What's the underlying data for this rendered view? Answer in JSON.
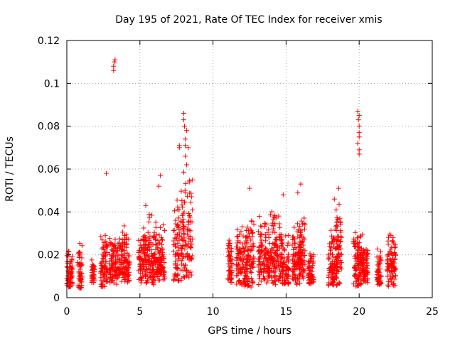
{
  "chart_data": {
    "type": "scatter",
    "title": "Day 195 of 2021, Rate Of TEC Index for receiver xmis",
    "xlabel": "GPS time / hours",
    "ylabel": "ROTI / TECUs",
    "xlim": [
      0,
      25
    ],
    "ylim": [
      0,
      0.12
    ],
    "xticks": [
      "0",
      "5",
      "10",
      "15",
      "20",
      "25"
    ],
    "yticks": [
      "0",
      "0.02",
      "0.04",
      "0.06",
      "0.08",
      "0.1",
      "0.12"
    ],
    "grid": true,
    "marker": "+",
    "color": "#ff0000",
    "clusters": [
      {
        "x": [
          0.0,
          0.4
        ],
        "y": [
          0.005,
          0.024
        ]
      },
      {
        "x": [
          0.75,
          1.05
        ],
        "y": [
          0.004,
          0.027
        ]
      },
      {
        "x": [
          1.7,
          1.9
        ],
        "y": [
          0.007,
          0.019
        ]
      },
      {
        "x": [
          2.3,
          2.8
        ],
        "y": [
          0.005,
          0.031
        ]
      },
      {
        "x": [
          2.9,
          3.6
        ],
        "y": [
          0.006,
          0.032
        ]
      },
      {
        "x": [
          3.6,
          4.3
        ],
        "y": [
          0.007,
          0.036
        ]
      },
      {
        "x": [
          4.9,
          5.5
        ],
        "y": [
          0.006,
          0.036
        ]
      },
      {
        "x": [
          5.5,
          6.1
        ],
        "y": [
          0.006,
          0.042
        ]
      },
      {
        "x": [
          6.1,
          6.7
        ],
        "y": [
          0.008,
          0.036
        ]
      },
      {
        "x": [
          7.3,
          7.7
        ],
        "y": [
          0.007,
          0.048
        ]
      },
      {
        "x": [
          7.8,
          8.6
        ],
        "y": [
          0.008,
          0.064
        ]
      },
      {
        "x": [
          11.0,
          11.3
        ],
        "y": [
          0.007,
          0.031
        ]
      },
      {
        "x": [
          11.6,
          12.3
        ],
        "y": [
          0.005,
          0.035
        ]
      },
      {
        "x": [
          12.3,
          12.8
        ],
        "y": [
          0.004,
          0.044
        ]
      },
      {
        "x": [
          13.1,
          13.8
        ],
        "y": [
          0.006,
          0.04
        ]
      },
      {
        "x": [
          13.8,
          14.6
        ],
        "y": [
          0.006,
          0.041
        ]
      },
      {
        "x": [
          14.6,
          15.2
        ],
        "y": [
          0.006,
          0.034
        ]
      },
      {
        "x": [
          15.4,
          16.0
        ],
        "y": [
          0.006,
          0.036
        ]
      },
      {
        "x": [
          15.9,
          16.3
        ],
        "y": [
          0.009,
          0.044
        ]
      },
      {
        "x": [
          16.5,
          16.9
        ],
        "y": [
          0.006,
          0.022
        ]
      },
      {
        "x": [
          17.9,
          18.5
        ],
        "y": [
          0.005,
          0.034
        ]
      },
      {
        "x": [
          18.4,
          18.8
        ],
        "y": [
          0.006,
          0.05
        ]
      },
      {
        "x": [
          19.6,
          20.3
        ],
        "y": [
          0.005,
          0.033
        ]
      },
      {
        "x": [
          20.2,
          20.6
        ],
        "y": [
          0.007,
          0.024
        ]
      },
      {
        "x": [
          21.2,
          21.5
        ],
        "y": [
          0.006,
          0.024
        ]
      },
      {
        "x": [
          21.9,
          22.5
        ],
        "y": [
          0.005,
          0.032
        ]
      }
    ],
    "outliers": [
      {
        "x": 3.2,
        "y": 0.106
      },
      {
        "x": 3.2,
        "y": 0.108
      },
      {
        "x": 3.25,
        "y": 0.11
      },
      {
        "x": 3.3,
        "y": 0.111
      },
      {
        "x": 2.7,
        "y": 0.058
      },
      {
        "x": 6.3,
        "y": 0.052
      },
      {
        "x": 6.4,
        "y": 0.057
      },
      {
        "x": 5.4,
        "y": 0.043
      },
      {
        "x": 7.7,
        "y": 0.07
      },
      {
        "x": 7.7,
        "y": 0.071
      },
      {
        "x": 8.0,
        "y": 0.086
      },
      {
        "x": 8.0,
        "y": 0.083
      },
      {
        "x": 8.05,
        "y": 0.08
      },
      {
        "x": 8.1,
        "y": 0.074
      },
      {
        "x": 8.1,
        "y": 0.071
      },
      {
        "x": 8.2,
        "y": 0.078
      },
      {
        "x": 8.1,
        "y": 0.066
      },
      {
        "x": 8.2,
        "y": 0.062
      },
      {
        "x": 8.3,
        "y": 0.07
      },
      {
        "x": 12.5,
        "y": 0.051
      },
      {
        "x": 16.0,
        "y": 0.053
      },
      {
        "x": 15.8,
        "y": 0.049
      },
      {
        "x": 14.8,
        "y": 0.048
      },
      {
        "x": 18.3,
        "y": 0.046
      },
      {
        "x": 18.6,
        "y": 0.051
      },
      {
        "x": 19.9,
        "y": 0.087
      },
      {
        "x": 20.0,
        "y": 0.085
      },
      {
        "x": 19.95,
        "y": 0.083
      },
      {
        "x": 20.0,
        "y": 0.08
      },
      {
        "x": 20.0,
        "y": 0.077
      },
      {
        "x": 20.0,
        "y": 0.075
      },
      {
        "x": 19.9,
        "y": 0.072
      },
      {
        "x": 20.0,
        "y": 0.069
      },
      {
        "x": 20.0,
        "y": 0.067
      }
    ]
  }
}
